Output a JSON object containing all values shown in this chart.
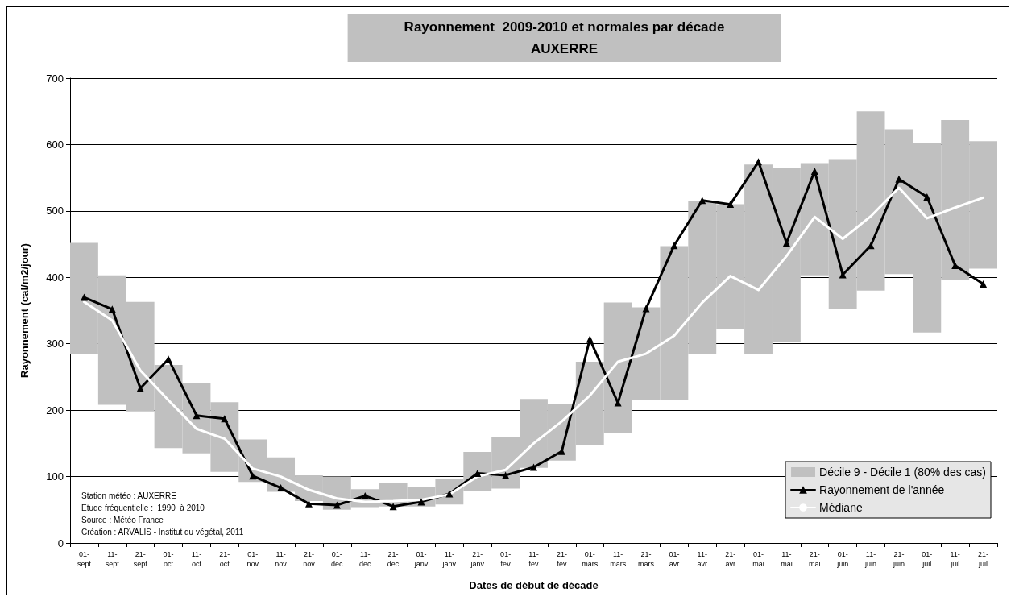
{
  "chart_data": {
    "type": "line",
    "title": "Rayonnement  2009-2010 et normales par décade",
    "subtitle": "AUXERRE",
    "xlabel": "Dates de début de décade",
    "ylabel": "Rayonnement (cal/m2/jour)",
    "categories": [
      "01-\nsept",
      "11-\nsept",
      "21-\nsept",
      "01-\noct",
      "11-\noct",
      "21-\noct",
      "01-\nnov",
      "11-\nnov",
      "21-\nnov",
      "01-\ndec",
      "11-\ndec",
      "21-\ndec",
      "01-\njanv",
      "11-\njanv",
      "21-\njanv",
      "01-\nfev",
      "11-\nfev",
      "21-\nfev",
      "01-\nmars",
      "11-\nmars",
      "21-\nmars",
      "01-\navr",
      "11-\navr",
      "21-\navr",
      "01-\nmai",
      "11-\nmai",
      "21-\nmai",
      "01-\njuin",
      "11-\njuin",
      "21-\njuin",
      "01-\njuil",
      "11-\njuil",
      "21-\njuil"
    ],
    "series": [
      {
        "type": "bar",
        "name": "Décile 9 - Décile 1 (80% des cas)",
        "color": "#c0c0c0",
        "base": [
          285,
          208,
          198,
          143,
          135,
          107,
          92,
          77,
          63,
          50,
          54,
          55,
          55,
          58,
          78,
          82,
          113,
          124,
          147,
          165,
          215,
          215,
          285,
          322,
          285,
          302,
          403,
          352,
          380,
          405,
          317,
          396,
          413
        ],
        "values": [
          167,
          195,
          165,
          125,
          106,
          105,
          64,
          52,
          39,
          50,
          27,
          35,
          30,
          38,
          59,
          78,
          104,
          86,
          126,
          197,
          140,
          232,
          230,
          188,
          285,
          263,
          169,
          226,
          270,
          218,
          286,
          241,
          192
        ]
      },
      {
        "name": "Rayonnement de l'année",
        "color": "#000000",
        "marker": "triangle",
        "values": [
          370,
          352,
          233,
          277,
          192,
          187,
          101,
          83,
          59,
          57,
          71,
          55,
          62,
          74,
          105,
          102,
          114,
          138,
          307,
          211,
          353,
          448,
          516,
          510,
          574,
          452,
          560,
          404,
          448,
          548,
          521,
          418,
          390
        ]
      },
      {
        "name": "Médiane",
        "color": "#ffffff",
        "marker": "none",
        "values": [
          363,
          335,
          260,
          215,
          172,
          157,
          112,
          100,
          80,
          67,
          62,
          63,
          65,
          73,
          100,
          110,
          150,
          183,
          222,
          273,
          285,
          312,
          362,
          402,
          381,
          432,
          491,
          458,
          492,
          535,
          489,
          505,
          520
        ]
      }
    ],
    "ylim": [
      0,
      700
    ],
    "yticks": [
      0,
      100,
      200,
      300,
      400,
      500,
      600,
      700
    ],
    "grid": "y",
    "legend": "bottom right",
    "line_style": "solid",
    "annotations": [
      "Station météo : AUXERRE",
      "Etude fréquentielle :  1990  à 2010",
      "Source : Météo France",
      "Création : ARVALIS - Institut du végétal, 2011"
    ]
  }
}
